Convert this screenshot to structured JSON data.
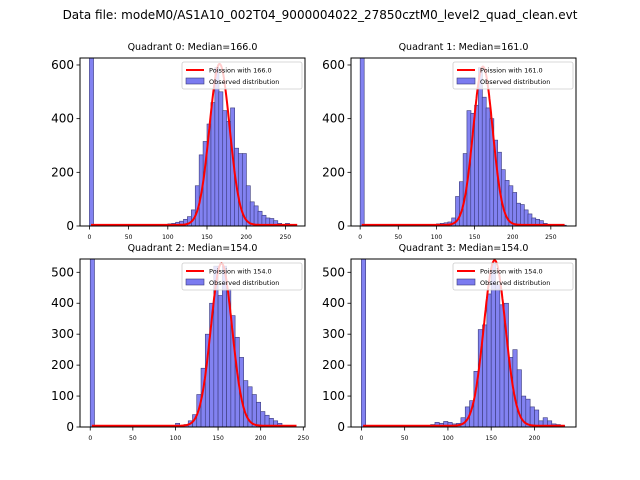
{
  "suptitle": "Data file: modeM0/AS1A10_002T04_9000004022_27850cztM0_level2_quad_clean.evt",
  "colors": {
    "bar_fill": "#7b7bf0",
    "bar_edge": "#3a3a7a",
    "poisson_line": "#ff0000"
  },
  "chart_data": [
    {
      "type": "bar",
      "title": "Quadrant 0: Median=166.0",
      "xlabel": "",
      "ylabel": "",
      "xlim": [
        -12,
        275
      ],
      "ylim": [
        0,
        626
      ],
      "xticks": [
        0,
        50,
        100,
        150,
        200,
        250
      ],
      "yticks": [
        0,
        200,
        400,
        600
      ],
      "legend": {
        "position": "top-right",
        "entries": [
          "Poission with 166.0",
          "Observed distribution"
        ]
      },
      "bin_width": 5.3,
      "bins": [
        [
          0,
          626
        ],
        [
          95,
          2
        ],
        [
          100,
          8
        ],
        [
          105,
          10
        ],
        [
          110,
          14
        ],
        [
          115,
          18
        ],
        [
          120,
          25
        ],
        [
          125,
          35
        ],
        [
          130,
          60
        ],
        [
          135,
          150
        ],
        [
          140,
          265
        ],
        [
          145,
          315
        ],
        [
          150,
          380
        ],
        [
          155,
          460
        ],
        [
          160,
          590
        ],
        [
          165,
          500
        ],
        [
          170,
          430
        ],
        [
          175,
          390
        ],
        [
          180,
          440
        ],
        [
          185,
          290
        ],
        [
          190,
          270
        ],
        [
          195,
          270
        ],
        [
          200,
          150
        ],
        [
          205,
          90
        ],
        [
          210,
          75
        ],
        [
          215,
          55
        ],
        [
          220,
          40
        ],
        [
          225,
          30
        ],
        [
          230,
          28
        ],
        [
          235,
          20
        ],
        [
          240,
          10
        ],
        [
          250,
          10
        ]
      ],
      "poisson_mean": 166.0,
      "poisson_peak": 600,
      "poisson_x_range": [
        2,
        265
      ],
      "series": [
        {
          "name": "Poission with 166.0",
          "kind": "line"
        },
        {
          "name": "Observed distribution",
          "kind": "histogram"
        }
      ]
    },
    {
      "type": "bar",
      "title": "Quadrant 1: Median=161.0",
      "xlabel": "",
      "ylabel": "",
      "xlim": [
        -12,
        283
      ],
      "ylim": [
        0,
        626
      ],
      "xticks": [
        0,
        50,
        100,
        150,
        200,
        250
      ],
      "yticks": [
        0,
        200,
        400,
        600
      ],
      "legend": {
        "position": "top-right",
        "entries": [
          "Poission with 161.0",
          "Observed distribution"
        ]
      },
      "bin_width": 5.3,
      "bins": [
        [
          0,
          626
        ],
        [
          75,
          3
        ],
        [
          100,
          8
        ],
        [
          105,
          10
        ],
        [
          110,
          12
        ],
        [
          115,
          15
        ],
        [
          120,
          30
        ],
        [
          125,
          110
        ],
        [
          130,
          165
        ],
        [
          135,
          270
        ],
        [
          140,
          430
        ],
        [
          145,
          420
        ],
        [
          150,
          450
        ],
        [
          155,
          590
        ],
        [
          160,
          480
        ],
        [
          165,
          440
        ],
        [
          170,
          400
        ],
        [
          175,
          320
        ],
        [
          180,
          275
        ],
        [
          185,
          210
        ],
        [
          190,
          170
        ],
        [
          195,
          150
        ],
        [
          200,
          125
        ],
        [
          205,
          85
        ],
        [
          210,
          80
        ],
        [
          215,
          60
        ],
        [
          220,
          45
        ],
        [
          225,
          30
        ],
        [
          230,
          25
        ],
        [
          235,
          20
        ],
        [
          240,
          10
        ],
        [
          265,
          3
        ]
      ],
      "poisson_mean": 161.0,
      "poisson_peak": 590,
      "poisson_x_range": [
        2,
        268
      ],
      "series": [
        {
          "name": "Poission with 161.0",
          "kind": "line"
        },
        {
          "name": "Observed distribution",
          "kind": "histogram"
        }
      ]
    },
    {
      "type": "bar",
      "title": "Quadrant 2: Median=154.0",
      "xlabel": "",
      "ylabel": "",
      "xlim": [
        -12,
        252
      ],
      "ylim": [
        0,
        543
      ],
      "xticks": [
        0,
        50,
        100,
        150,
        200,
        250
      ],
      "yticks": [
        0,
        100,
        200,
        300,
        400,
        500
      ],
      "legend": {
        "position": "top-right",
        "entries": [
          "Poission with 154.0",
          "Observed distribution"
        ]
      },
      "bin_width": 5.0,
      "bins": [
        [
          0,
          543
        ],
        [
          80,
          5
        ],
        [
          85,
          5
        ],
        [
          90,
          5
        ],
        [
          100,
          12
        ],
        [
          110,
          8
        ],
        [
          115,
          20
        ],
        [
          120,
          40
        ],
        [
          125,
          105
        ],
        [
          130,
          190
        ],
        [
          135,
          300
        ],
        [
          140,
          400
        ],
        [
          145,
          520
        ],
        [
          150,
          425
        ],
        [
          155,
          520
        ],
        [
          160,
          445
        ],
        [
          165,
          360
        ],
        [
          170,
          290
        ],
        [
          175,
          225
        ],
        [
          180,
          150
        ],
        [
          185,
          130
        ],
        [
          190,
          105
        ],
        [
          195,
          80
        ],
        [
          200,
          50
        ],
        [
          205,
          38
        ],
        [
          210,
          28
        ],
        [
          215,
          20
        ],
        [
          220,
          12
        ]
      ],
      "poisson_mean": 154.0,
      "poisson_peak": 525,
      "poisson_x_range": [
        2,
        242
      ],
      "series": [
        {
          "name": "Poission with 154.0",
          "kind": "line"
        },
        {
          "name": "Observed distribution",
          "kind": "histogram"
        }
      ]
    },
    {
      "type": "bar",
      "title": "Quadrant 3: Median=154.0",
      "xlabel": "",
      "ylabel": "",
      "xlim": [
        -12,
        248
      ],
      "ylim": [
        0,
        543
      ],
      "xticks": [
        0,
        50,
        100,
        150,
        200
      ],
      "yticks": [
        0,
        100,
        200,
        300,
        400,
        500
      ],
      "legend": {
        "position": "top-right",
        "entries": [
          "Poission with 154.0",
          "Observed distribution"
        ]
      },
      "bin_width": 5.0,
      "bins": [
        [
          0,
          543
        ],
        [
          45,
          5
        ],
        [
          70,
          5
        ],
        [
          80,
          8
        ],
        [
          85,
          15
        ],
        [
          90,
          12
        ],
        [
          95,
          18
        ],
        [
          100,
          15
        ],
        [
          105,
          10
        ],
        [
          110,
          12
        ],
        [
          115,
          30
        ],
        [
          120,
          65
        ],
        [
          125,
          85
        ],
        [
          130,
          180
        ],
        [
          135,
          315
        ],
        [
          140,
          330
        ],
        [
          145,
          430
        ],
        [
          150,
          530
        ],
        [
          155,
          460
        ],
        [
          160,
          395
        ],
        [
          165,
          400
        ],
        [
          170,
          225
        ],
        [
          175,
          250
        ],
        [
          180,
          185
        ],
        [
          185,
          100
        ],
        [
          190,
          90
        ],
        [
          195,
          65
        ],
        [
          200,
          55
        ],
        [
          205,
          20
        ],
        [
          210,
          30
        ],
        [
          215,
          20
        ],
        [
          220,
          10
        ],
        [
          225,
          8
        ],
        [
          230,
          5
        ]
      ],
      "poisson_mean": 154.0,
      "poisson_peak": 535,
      "poisson_x_range": [
        2,
        235
      ],
      "series": [
        {
          "name": "Poission with 154.0",
          "kind": "line"
        },
        {
          "name": "Observed distribution",
          "kind": "histogram"
        }
      ]
    }
  ]
}
